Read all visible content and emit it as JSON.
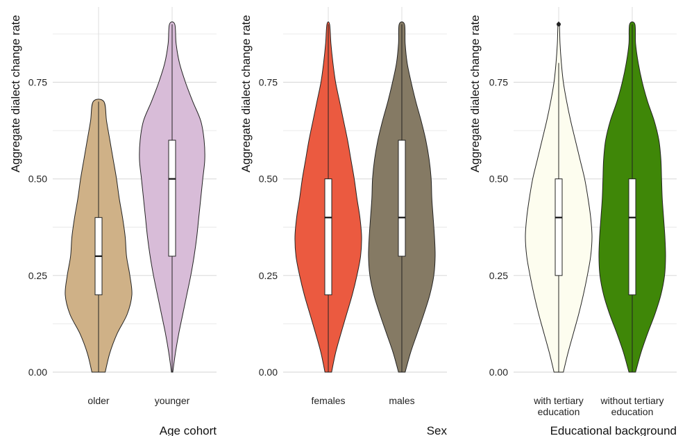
{
  "chart_data": [
    {
      "type": "violin",
      "ylabel": "Aggregate dialect change rate",
      "xlabel": "Age cohort",
      "yticks": [
        "0.00",
        "0.25",
        "0.50",
        "0.75"
      ],
      "ylim": [
        0,
        0.9
      ],
      "grid": true,
      "categories": [
        "older",
        "younger"
      ],
      "colors": [
        "#cfb187",
        "#d8bcd8"
      ],
      "series": [
        {
          "category": "older",
          "min": 0.0,
          "q1": 0.2,
          "median": 0.3,
          "q3": 0.4,
          "max": 0.7,
          "density": [
            [
              0.0,
              0.2
            ],
            [
              0.05,
              0.34
            ],
            [
              0.1,
              0.56
            ],
            [
              0.15,
              0.86
            ],
            [
              0.2,
              1.0
            ],
            [
              0.25,
              0.94
            ],
            [
              0.3,
              0.84
            ],
            [
              0.35,
              0.8
            ],
            [
              0.4,
              0.72
            ],
            [
              0.45,
              0.62
            ],
            [
              0.5,
              0.54
            ],
            [
              0.55,
              0.44
            ],
            [
              0.6,
              0.34
            ],
            [
              0.65,
              0.24
            ],
            [
              0.7,
              0.16
            ]
          ],
          "outliers": []
        },
        {
          "category": "younger",
          "min": 0.0,
          "q1": 0.3,
          "median": 0.5,
          "q3": 0.6,
          "max": 0.9,
          "density": [
            [
              0.0,
              0.02
            ],
            [
              0.05,
              0.1
            ],
            [
              0.1,
              0.2
            ],
            [
              0.15,
              0.32
            ],
            [
              0.2,
              0.44
            ],
            [
              0.25,
              0.56
            ],
            [
              0.3,
              0.66
            ],
            [
              0.35,
              0.74
            ],
            [
              0.4,
              0.8
            ],
            [
              0.45,
              0.86
            ],
            [
              0.5,
              0.92
            ],
            [
              0.55,
              0.98
            ],
            [
              0.6,
              0.96
            ],
            [
              0.65,
              0.86
            ],
            [
              0.7,
              0.62
            ],
            [
              0.75,
              0.4
            ],
            [
              0.8,
              0.22
            ],
            [
              0.85,
              0.12
            ],
            [
              0.9,
              0.08
            ]
          ],
          "outliers": []
        }
      ]
    },
    {
      "type": "violin",
      "ylabel": "Aggregate dialect change rate",
      "xlabel": "Sex",
      "yticks": [
        "0.00",
        "0.25",
        "0.50",
        "0.75"
      ],
      "ylim": [
        0,
        0.9
      ],
      "grid": true,
      "categories": [
        "females",
        "males"
      ],
      "colors": [
        "#eb5a40",
        "#857a64"
      ],
      "series": [
        {
          "category": "females",
          "min": 0.0,
          "q1": 0.2,
          "median": 0.4,
          "q3": 0.5,
          "max": 0.9,
          "density": [
            [
              0.0,
              0.1
            ],
            [
              0.05,
              0.22
            ],
            [
              0.1,
              0.38
            ],
            [
              0.15,
              0.55
            ],
            [
              0.2,
              0.72
            ],
            [
              0.25,
              0.86
            ],
            [
              0.3,
              0.97
            ],
            [
              0.35,
              1.0
            ],
            [
              0.4,
              0.95
            ],
            [
              0.45,
              0.86
            ],
            [
              0.5,
              0.78
            ],
            [
              0.55,
              0.68
            ],
            [
              0.6,
              0.58
            ],
            [
              0.65,
              0.46
            ],
            [
              0.7,
              0.34
            ],
            [
              0.75,
              0.22
            ],
            [
              0.8,
              0.14
            ],
            [
              0.85,
              0.08
            ],
            [
              0.9,
              0.04
            ]
          ],
          "outliers": []
        },
        {
          "category": "males",
          "min": 0.0,
          "q1": 0.3,
          "median": 0.4,
          "q3": 0.6,
          "max": 0.9,
          "density": [
            [
              0.0,
              0.1
            ],
            [
              0.05,
              0.26
            ],
            [
              0.1,
              0.46
            ],
            [
              0.15,
              0.66
            ],
            [
              0.2,
              0.84
            ],
            [
              0.25,
              0.96
            ],
            [
              0.3,
              1.0
            ],
            [
              0.35,
              0.98
            ],
            [
              0.4,
              0.94
            ],
            [
              0.45,
              0.9
            ],
            [
              0.5,
              0.88
            ],
            [
              0.55,
              0.82
            ],
            [
              0.6,
              0.72
            ],
            [
              0.65,
              0.58
            ],
            [
              0.7,
              0.42
            ],
            [
              0.75,
              0.28
            ],
            [
              0.8,
              0.16
            ],
            [
              0.85,
              0.1
            ],
            [
              0.9,
              0.08
            ]
          ],
          "outliers": []
        }
      ]
    },
    {
      "type": "violin",
      "ylabel": "Aggregate dialect change rate",
      "xlabel": "Educational background",
      "yticks": [
        "0.00",
        "0.25",
        "0.50",
        "0.75"
      ],
      "ylim": [
        0,
        0.9
      ],
      "grid": true,
      "categories": [
        "with tertiary education",
        "without tertiary education"
      ],
      "colors": [
        "#fdfdef",
        "#3f8708"
      ],
      "series": [
        {
          "category": "with tertiary education",
          "min": 0.0,
          "q1": 0.25,
          "median": 0.4,
          "q3": 0.5,
          "max": 0.8,
          "density": [
            [
              0.0,
              0.14
            ],
            [
              0.05,
              0.28
            ],
            [
              0.1,
              0.44
            ],
            [
              0.15,
              0.6
            ],
            [
              0.2,
              0.74
            ],
            [
              0.25,
              0.86
            ],
            [
              0.3,
              0.96
            ],
            [
              0.35,
              1.0
            ],
            [
              0.4,
              0.96
            ],
            [
              0.45,
              0.88
            ],
            [
              0.5,
              0.78
            ],
            [
              0.55,
              0.64
            ],
            [
              0.6,
              0.5
            ],
            [
              0.65,
              0.36
            ],
            [
              0.7,
              0.24
            ],
            [
              0.75,
              0.14
            ],
            [
              0.8,
              0.08
            ],
            [
              0.85,
              0.04
            ],
            [
              0.9,
              0.02
            ]
          ],
          "outliers": [
            0.9
          ]
        },
        {
          "category": "without tertiary education",
          "min": 0.0,
          "q1": 0.2,
          "median": 0.4,
          "q3": 0.5,
          "max": 0.9,
          "density": [
            [
              0.0,
              0.1
            ],
            [
              0.05,
              0.26
            ],
            [
              0.1,
              0.46
            ],
            [
              0.15,
              0.68
            ],
            [
              0.2,
              0.86
            ],
            [
              0.25,
              0.97
            ],
            [
              0.3,
              1.0
            ],
            [
              0.35,
              0.98
            ],
            [
              0.4,
              0.94
            ],
            [
              0.45,
              0.9
            ],
            [
              0.5,
              0.88
            ],
            [
              0.55,
              0.86
            ],
            [
              0.6,
              0.8
            ],
            [
              0.65,
              0.66
            ],
            [
              0.7,
              0.46
            ],
            [
              0.75,
              0.3
            ],
            [
              0.8,
              0.18
            ],
            [
              0.85,
              0.1
            ],
            [
              0.9,
              0.08
            ]
          ],
          "outliers": []
        }
      ]
    }
  ]
}
